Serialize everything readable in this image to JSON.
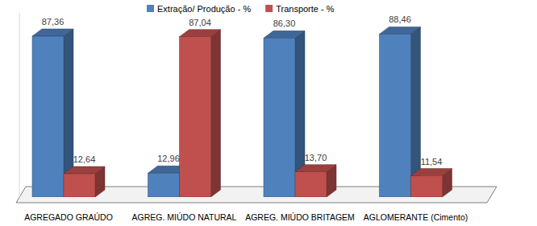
{
  "chart_data": {
    "type": "bar",
    "categories": [
      "AGREGADO GRAÚDO",
      "AGREG. MIÚDO NATURAL",
      "AGREG. MIÚDO BRITAGEM",
      "AGLOMERANTE (Cimento)"
    ],
    "series": [
      {
        "name": "Extração/ Produção - %",
        "color": "#4f81bd",
        "values": [
          87.36,
          12.96,
          86.3,
          88.46
        ],
        "value_labels": [
          "87,36",
          "12,96",
          "86,30",
          "88,46"
        ]
      },
      {
        "name": "Transporte - %",
        "color": "#c0504d",
        "values": [
          12.64,
          87.04,
          13.7,
          11.54
        ],
        "value_labels": [
          "12,64",
          "87,04",
          "13,70",
          "11,54"
        ]
      }
    ],
    "ylim": [
      0,
      100
    ],
    "legend": "top",
    "data_labels": true,
    "tick_labels": "x"
  }
}
